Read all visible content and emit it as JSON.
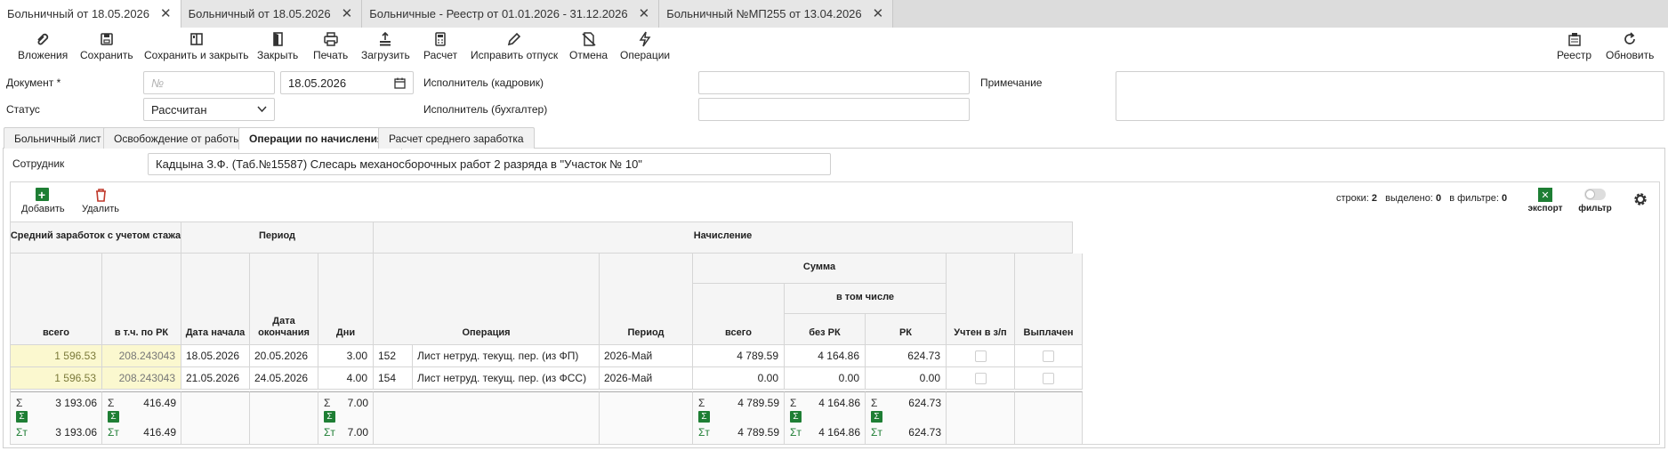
{
  "tabs": [
    {
      "label": "Больничный от 18.05.2026",
      "active": true
    },
    {
      "label": "Больничный от 18.05.2026",
      "active": false
    },
    {
      "label": "Больничные - Реестр от 01.01.2026 - 31.12.2026",
      "active": false
    },
    {
      "label": "Больничный №МП255 от 13.04.2026",
      "active": false
    }
  ],
  "toolbar": {
    "attachments": "Вложения",
    "save": "Сохранить",
    "save_close": "Сохранить и закрыть",
    "close": "Закрыть",
    "print": "Печать",
    "load": "Загрузить",
    "calc": "Расчет",
    "fix_vacation": "Исправить отпуск",
    "cancel": "Отмена",
    "operations": "Операции",
    "registry": "Реестр",
    "refresh": "Обновить"
  },
  "form": {
    "document_label": "Документ *",
    "document_number_placeholder": "№",
    "document_date": "18.05.2026",
    "status_label": "Статус",
    "status_value": "Рассчитан",
    "executor_hr_label": "Исполнитель (кадровик)",
    "executor_hr_value": "",
    "executor_acc_label": "Исполнитель (бухгалтер)",
    "executor_acc_value": "",
    "note_label": "Примечание",
    "note_value": ""
  },
  "inner_tabs": [
    {
      "label": "Больничный лист",
      "active": false
    },
    {
      "label": "Освобождение от работы",
      "active": false
    },
    {
      "label": "Операции по начислениям",
      "active": true
    },
    {
      "label": "Расчет среднего заработка",
      "active": false
    }
  ],
  "employee": {
    "label": "Сотрудник",
    "value": "Кадцына З.Ф. (Таб.№15587) Слесарь механосборочных работ 2 разряда в \"Участок № 10\""
  },
  "grid_toolbar": {
    "add": "Добавить",
    "delete": "Удалить",
    "rows_label": "строки:",
    "rows_value": "2",
    "selected_label": "выделено:",
    "selected_value": "0",
    "in_filter_label": "в фильтре:",
    "in_filter_value": "0",
    "export": "экспорт",
    "filter": "фильтр"
  },
  "columns": {
    "avg_group": "Средний заработок с учетом стажа",
    "period_group": "Период",
    "accrual_group": "Начисление",
    "sum_group": "Сумма",
    "including": "в том числе",
    "total": "всего",
    "incl_rk": "в т.ч. по РК",
    "date_start": "Дата начала",
    "date_end": "Дата окончания",
    "days": "Дни",
    "operation": "Операция",
    "period": "Период",
    "sum_total": "всего",
    "without_rk": "без РК",
    "rk": "РК",
    "counted": "Учтен в з/п",
    "paid": "Выплачен"
  },
  "rows": [
    {
      "avg_total": "1 596.53",
      "incl_rk": "208.243043",
      "date_start": "18.05.2026",
      "date_end": "20.05.2026",
      "days": "3.00",
      "op_code": "152",
      "op_name": "Лист нетруд. текущ. пер. (из ФП)",
      "period": "2026-Май",
      "sum_total": "4 789.59",
      "without_rk": "4 164.86",
      "rk": "624.73"
    },
    {
      "avg_total": "1 596.53",
      "incl_rk": "208.243043",
      "date_start": "21.05.2026",
      "date_end": "24.05.2026",
      "days": "4.00",
      "op_code": "154",
      "op_name": "Лист нетруд. текущ. пер. (из ФСС)",
      "period": "2026-Май",
      "sum_total": "0.00",
      "without_rk": "0.00",
      "rk": "0.00"
    }
  ],
  "footer": {
    "sigma": "Σ",
    "sigma_t": "Σт",
    "avg_total_sum": "3 193.06",
    "avg_total_sumt": "3 193.06",
    "incl_rk_sum": "416.49",
    "incl_rk_sumt": "416.49",
    "days_sum": "7.00",
    "days_sumt": "7.00",
    "sum_total_sum": "4 789.59",
    "sum_total_sumt": "4 789.59",
    "without_rk_sum": "4 164.86",
    "without_rk_sumt": "4 164.86",
    "rk_sum": "624.73",
    "rk_sumt": "624.73"
  }
}
